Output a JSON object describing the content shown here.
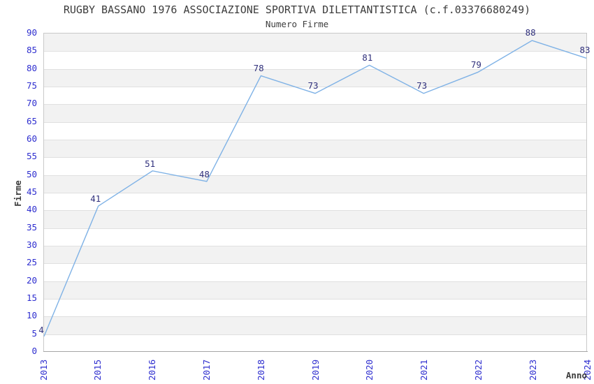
{
  "chart_data": {
    "type": "line",
    "title": "RUGBY BASSANO 1976 ASSOCIAZIONE SPORTIVA DILETTANTISTICA (c.f.03376680249)",
    "subtitle": "Numero Firme",
    "categories": [
      "2013",
      "2015",
      "2016",
      "2017",
      "2018",
      "2019",
      "2020",
      "2021",
      "2022",
      "2023",
      "2024"
    ],
    "values": [
      4,
      41,
      51,
      48,
      78,
      73,
      81,
      73,
      79,
      88,
      83
    ],
    "series_name": "Numero Firme",
    "xlabel": "Anno",
    "ylabel": "Firme",
    "ylim": [
      0,
      90
    ],
    "ytick_step": 5,
    "grid": "horizontal bands, alternating fill every 5 units",
    "legend": "none",
    "markers": "none, labels above each point",
    "colors": {
      "line": "#7fb2e6",
      "tick_labels": "#2e2ecf",
      "point_labels": "#30307c",
      "band_fill": "#f2f2f2",
      "gridline": "#e0e0e0",
      "plot_border": "#c9c9c9",
      "axis_line": "#a6a6a6",
      "title_text": "#3d3d3d"
    }
  }
}
